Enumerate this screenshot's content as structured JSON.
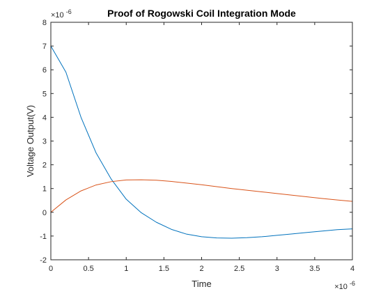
{
  "chart_data": {
    "type": "line",
    "title": "Proof of Rogowski Coil Integration Mode",
    "xlabel": "Time",
    "ylabel": "Voltage Output(V)",
    "xlim": [
      0,
      4
    ],
    "ylim": [
      -2,
      8
    ],
    "x_exponent": "×10",
    "x_exponent_power": "-6",
    "y_exponent": "×10",
    "y_exponent_power": "-6",
    "xticks": [
      0,
      0.5,
      1,
      1.5,
      2,
      2.5,
      3,
      3.5,
      4
    ],
    "xtick_labels": [
      "0",
      "0.5",
      "1",
      "1.5",
      "2",
      "2.5",
      "3",
      "3.5",
      "4"
    ],
    "yticks": [
      -2,
      -1,
      0,
      1,
      2,
      3,
      4,
      5,
      6,
      7,
      8
    ],
    "ytick_labels": [
      "-2",
      "-1",
      "0",
      "1",
      "2",
      "3",
      "4",
      "5",
      "6",
      "7",
      "8"
    ],
    "grid": false,
    "series": [
      {
        "color": "#0072BD",
        "x": [
          0,
          0.2,
          0.4,
          0.6,
          0.8,
          1.0,
          1.2,
          1.4,
          1.6,
          1.8,
          2.0,
          2.2,
          2.4,
          2.6,
          2.8,
          3.0,
          3.2,
          3.4,
          3.6,
          3.8,
          4.0
        ],
        "y": [
          7.0,
          5.9,
          4.0,
          2.5,
          1.4,
          0.55,
          -0.02,
          -0.42,
          -0.72,
          -0.92,
          -1.03,
          -1.08,
          -1.09,
          -1.07,
          -1.03,
          -0.97,
          -0.91,
          -0.85,
          -0.79,
          -0.73,
          -0.7
        ]
      },
      {
        "color": "#D95319",
        "x": [
          0,
          0.2,
          0.4,
          0.6,
          0.8,
          1.0,
          1.2,
          1.4,
          1.6,
          1.8,
          2.0,
          2.2,
          2.4,
          2.6,
          2.8,
          3.0,
          3.2,
          3.4,
          3.6,
          3.8,
          4.0
        ],
        "y": [
          0.0,
          0.52,
          0.9,
          1.15,
          1.29,
          1.36,
          1.37,
          1.35,
          1.3,
          1.23,
          1.16,
          1.08,
          1.0,
          0.93,
          0.86,
          0.79,
          0.72,
          0.65,
          0.58,
          0.52,
          0.46
        ]
      }
    ]
  }
}
